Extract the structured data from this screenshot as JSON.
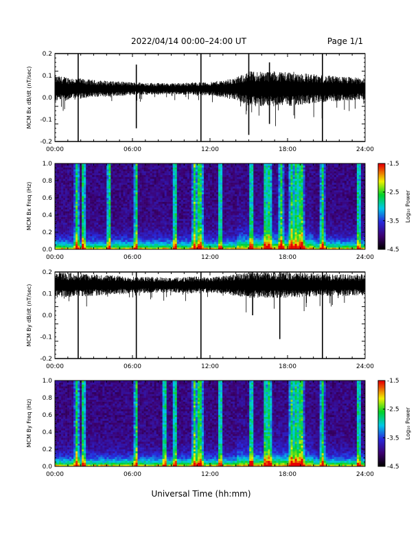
{
  "header": {
    "title": "2022/04/14  00:00–24:00 UT",
    "page": "Page 1/1"
  },
  "x_axis_title": "Universal Time (hh:mm)",
  "colorbar": {
    "label": "Log₁₀ Power",
    "ticks": [
      "-1.5",
      "-2.5",
      "-3.5",
      "-4.5"
    ],
    "range": [
      -4.5,
      -1.5
    ]
  },
  "chart_data": [
    {
      "type": "line",
      "ylabel": "MCM Bx dB/dt (nT/sec)",
      "xlim_hours": [
        0,
        24
      ],
      "xticks": [
        "00:00",
        "06:00",
        "12:00",
        "18:00",
        "24:00"
      ],
      "ylim": [
        -0.2,
        0.2
      ],
      "yticks": [
        "0.2",
        "0.1",
        "0.0",
        "-0.1",
        "-0.2"
      ],
      "series": [
        {
          "baseline": 0.04,
          "band_envelope_hours": [
            0,
            3,
            6,
            9,
            11,
            12,
            14,
            15,
            18,
            21,
            24
          ],
          "band_halfwidth": [
            0.06,
            0.04,
            0.03,
            0.025,
            0.03,
            0.03,
            0.05,
            0.08,
            0.08,
            0.06,
            0.05
          ],
          "spikes": [
            {
              "hour": 1.8,
              "low": -0.2,
              "high": 0.2
            },
            {
              "hour": 11.3,
              "low": -0.2,
              "high": 0.2
            },
            {
              "hour": 15.0,
              "low": -0.17,
              "high": 0.2
            },
            {
              "hour": 20.7,
              "low": -0.2,
              "high": 0.2
            },
            {
              "hour": 6.3,
              "low": -0.14,
              "high": 0.15
            },
            {
              "hour": 16.6,
              "low": -0.12,
              "high": 0.16
            }
          ]
        }
      ]
    },
    {
      "type": "heatmap",
      "ylabel": "MCM Bx Freq (Hz)",
      "xlim_hours": [
        0,
        24
      ],
      "xticks": [
        "00:00",
        "06:00",
        "12:00",
        "18:00",
        "24:00"
      ],
      "ylim": [
        0,
        1
      ],
      "yticks": [
        "1.0",
        "0.8",
        "0.6",
        "0.4",
        "0.2",
        "0.0"
      ],
      "zlim": [
        -4.5,
        -1.5
      ],
      "bright_columns_hours": [
        1.7,
        2.2,
        4.2,
        6.3,
        9.3,
        10.8,
        11.1,
        11.3,
        12.8,
        15.2,
        16.3,
        16.6,
        17.5,
        18.3,
        18.6,
        18.9,
        19.0,
        19.1,
        20.7,
        23.5
      ]
    },
    {
      "type": "line",
      "ylabel": "MCM By dB/dt (nT/sec)",
      "xlim_hours": [
        0,
        24
      ],
      "xticks": [
        "00:00",
        "06:00",
        "12:00",
        "18:00",
        "24:00"
      ],
      "ylim": [
        -0.2,
        0.2
      ],
      "yticks": [
        "0.2",
        "0.1",
        "0.0",
        "-0.1",
        "-0.2"
      ],
      "series": [
        {
          "baseline": 0.14,
          "band_envelope_hours": [
            0,
            3,
            6,
            9,
            11,
            12,
            14,
            15,
            18,
            21,
            24
          ],
          "band_halfwidth": [
            0.06,
            0.05,
            0.04,
            0.035,
            0.04,
            0.035,
            0.05,
            0.06,
            0.06,
            0.05,
            0.05
          ],
          "spikes": [
            {
              "hour": 1.8,
              "low": -0.2,
              "high": 0.2
            },
            {
              "hour": 6.3,
              "low": -0.2,
              "high": 0.2
            },
            {
              "hour": 11.3,
              "low": -0.2,
              "high": 0.2
            },
            {
              "hour": 20.7,
              "low": -0.2,
              "high": 0.2
            },
            {
              "hour": 17.4,
              "low": -0.11,
              "high": 0.2
            },
            {
              "hour": 15.3,
              "low": 0.0,
              "high": 0.2
            }
          ]
        }
      ]
    },
    {
      "type": "heatmap",
      "ylabel": "MCM By Freq (Hz)",
      "xlim_hours": [
        0,
        24
      ],
      "xticks": [
        "00:00",
        "06:00",
        "12:00",
        "18:00",
        "24:00"
      ],
      "ylim": [
        0,
        1
      ],
      "yticks": [
        "1.0",
        "0.8",
        "0.6",
        "0.4",
        "0.2",
        "0.0"
      ],
      "zlim": [
        -4.5,
        -1.5
      ],
      "bright_columns_hours": [
        1.7,
        2.2,
        6.3,
        8.5,
        9.3,
        10.8,
        11.1,
        11.3,
        12.8,
        15.2,
        16.3,
        16.6,
        18.3,
        18.6,
        18.9,
        19.0,
        19.1,
        20.7,
        23.5
      ]
    }
  ]
}
